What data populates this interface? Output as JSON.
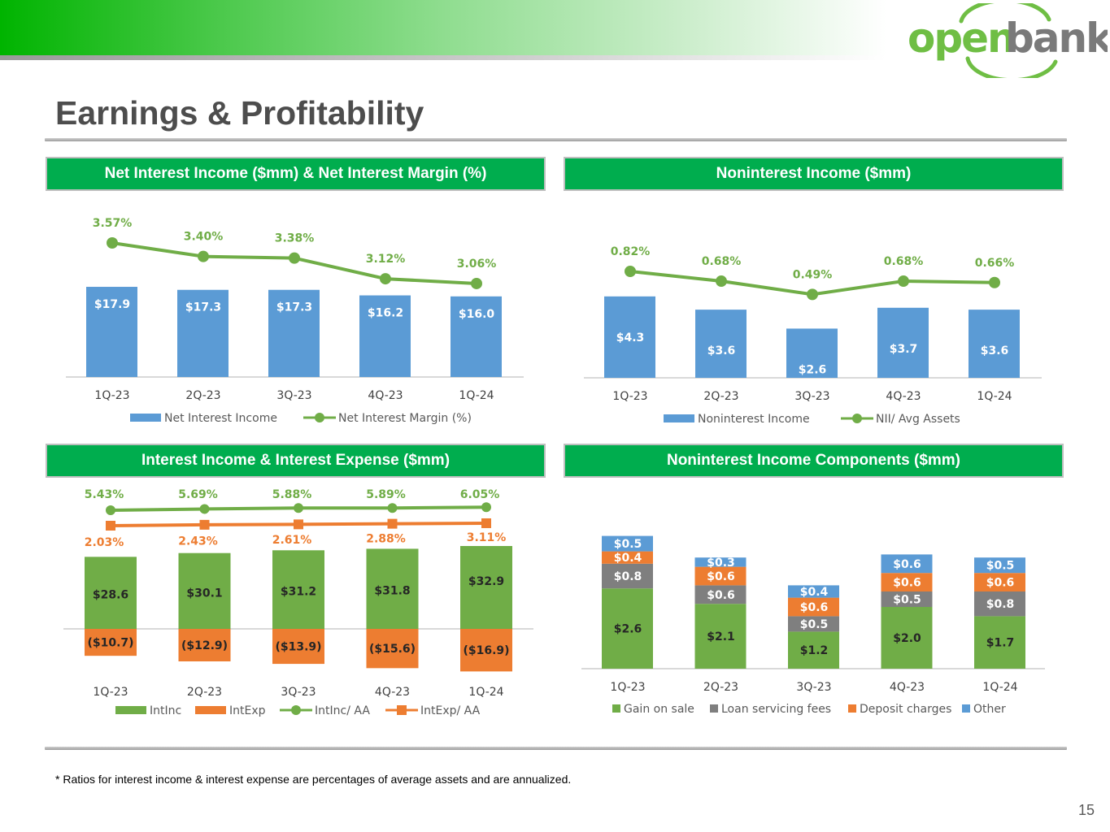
{
  "brand": {
    "logo_left": "open",
    "logo_right": "bank",
    "colors": {
      "green": "#00ad4e",
      "logo_green": "#6fbe44",
      "logo_gray": "#7a7a7a"
    }
  },
  "page": {
    "title": "Earnings & Profitability",
    "footnote": "* Ratios for interest income & interest expense are percentages of average assets and are annualized.",
    "page_number": "15"
  },
  "panels": {
    "nii": "Net Interest Income ($mm) & Net Interest Margin (%)",
    "nonint": "Noninterest Income ($mm)",
    "intinc": "Interest Income & Interest Expense ($mm)",
    "components": "Noninterest Income Components ($mm)"
  },
  "chart_data": [
    {
      "id": "nii",
      "type": "bar",
      "categories": [
        "1Q-23",
        "2Q-23",
        "3Q-23",
        "4Q-23",
        "1Q-24"
      ],
      "series": [
        {
          "name": "Net Interest Income",
          "kind": "bar",
          "color": "#5b9bd5",
          "values": [
            17.9,
            17.3,
            17.3,
            16.2,
            16.0
          ],
          "labels": [
            "$17.9",
            "$17.3",
            "$17.3",
            "$16.2",
            "$16.0"
          ]
        },
        {
          "name": "Net Interest Margin (%)",
          "kind": "line",
          "color": "#70ad47",
          "values": [
            3.57,
            3.4,
            3.38,
            3.12,
            3.06
          ],
          "labels": [
            "3.57%",
            "3.40%",
            "3.38%",
            "3.12%",
            "3.06%"
          ]
        }
      ],
      "ylim": [
        0,
        30
      ]
    },
    {
      "id": "nonint",
      "type": "bar",
      "categories": [
        "1Q-23",
        "2Q-23",
        "3Q-23",
        "4Q-23",
        "1Q-24"
      ],
      "series": [
        {
          "name": "Noninterest Income",
          "kind": "bar",
          "color": "#5b9bd5",
          "values": [
            4.3,
            3.6,
            2.6,
            3.7,
            3.6
          ],
          "labels": [
            "$4.3",
            "$3.6",
            "$2.6",
            "$3.7",
            "$3.6"
          ]
        },
        {
          "name": "NII/ Avg Assets",
          "kind": "line",
          "color": "#70ad47",
          "values": [
            0.82,
            0.68,
            0.49,
            0.68,
            0.66
          ],
          "labels": [
            "0.82%",
            "0.68%",
            "0.49%",
            "0.68%",
            "0.66%"
          ]
        }
      ],
      "ylim": [
        0,
        7.5
      ]
    },
    {
      "id": "intinc",
      "type": "bar",
      "categories": [
        "1Q-23",
        "2Q-23",
        "3Q-23",
        "4Q-23",
        "1Q-24"
      ],
      "series": [
        {
          "name": "IntInc",
          "kind": "bar",
          "color": "#70ad47",
          "values": [
            28.6,
            30.1,
            31.2,
            31.8,
            32.9
          ],
          "labels": [
            "$28.6",
            "$30.1",
            "$31.2",
            "$31.8",
            "$32.9"
          ]
        },
        {
          "name": "IntExp",
          "kind": "bar",
          "color": "#ed7d31",
          "values": [
            -10.7,
            -12.9,
            -13.9,
            -15.6,
            -16.9
          ],
          "labels": [
            "($10.7)",
            "($12.9)",
            "($13.9)",
            "($15.6)",
            "($16.9)"
          ]
        },
        {
          "name": "IntInc/ AA",
          "kind": "line",
          "color": "#70ad47",
          "values": [
            5.43,
            5.69,
            5.88,
            5.89,
            6.05
          ],
          "labels": [
            "5.43%",
            "5.69%",
            "5.88%",
            "5.89%",
            "6.05%"
          ]
        },
        {
          "name": "IntExp/ AA",
          "kind": "line",
          "color": "#ed7d31",
          "values": [
            2.03,
            2.43,
            2.61,
            2.88,
            3.11
          ],
          "labels": [
            "2.03%",
            "2.43%",
            "2.61%",
            "2.88%",
            "3.11%"
          ]
        }
      ],
      "ylim": [
        -20,
        55
      ]
    },
    {
      "id": "components",
      "type": "bar",
      "stacked": true,
      "categories": [
        "1Q-23",
        "2Q-23",
        "3Q-23",
        "4Q-23",
        "1Q-24"
      ],
      "series": [
        {
          "name": "Gain on sale",
          "color": "#70ad47",
          "values": [
            2.6,
            2.1,
            1.2,
            2.0,
            1.7
          ],
          "labels": [
            "$2.6",
            "$2.1",
            "$1.2",
            "$2.0",
            "$1.7"
          ]
        },
        {
          "name": "Loan servicing fees",
          "color": "#7f7f7f",
          "values": [
            0.8,
            0.6,
            0.5,
            0.5,
            0.8
          ],
          "labels": [
            "$0.8",
            "$0.6",
            "$0.5",
            "$0.5",
            "$0.8"
          ]
        },
        {
          "name": "Deposit charges",
          "color": "#ed7d31",
          "values": [
            0.4,
            0.6,
            0.6,
            0.6,
            0.6
          ],
          "labels": [
            "$0.4",
            "$0.6",
            "$0.6",
            "$0.6",
            "$0.6"
          ]
        },
        {
          "name": "Other",
          "color": "#5b9bd5",
          "values": [
            0.5,
            0.3,
            0.4,
            0.6,
            0.5
          ],
          "labels": [
            "$0.5",
            "$0.3",
            "$0.4",
            "$0.6",
            "$0.5"
          ]
        }
      ],
      "ylim": [
        0,
        5
      ]
    }
  ]
}
